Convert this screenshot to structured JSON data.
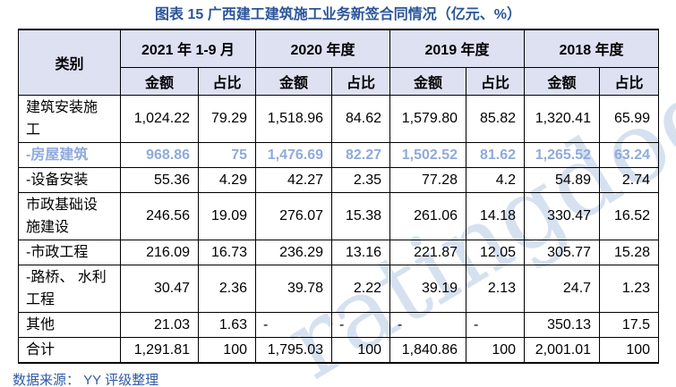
{
  "title": "图表 15 广西建工建筑施工业务新签合同情况（亿元、%）",
  "table": {
    "category_header": "类别",
    "period_headers": [
      "2021 年 1-9 月",
      "2020 年度",
      "2019 年度",
      "2018 年度"
    ],
    "sub_headers": {
      "amount": "金额",
      "share": "占比"
    },
    "rows": [
      {
        "label": "建筑安装施工",
        "highlight": false,
        "values": [
          "1,024.22",
          "79.29",
          "1,518.96",
          "84.62",
          "1,579.80",
          "85.82",
          "1,320.41",
          "65.99"
        ]
      },
      {
        "label": "-房屋建筑",
        "highlight": true,
        "values": [
          "968.86",
          "75",
          "1,476.69",
          "82.27",
          "1,502.52",
          "81.62",
          "1,265.52",
          "63.24"
        ]
      },
      {
        "label": "-设备安装",
        "highlight": false,
        "values": [
          "55.36",
          "4.29",
          "42.27",
          "2.35",
          "77.28",
          "4.2",
          "54.89",
          "2.74"
        ]
      },
      {
        "label": "市政基础设施建设",
        "highlight": false,
        "values": [
          "246.56",
          "19.09",
          "276.07",
          "15.38",
          "261.06",
          "14.18",
          "330.47",
          "16.52"
        ]
      },
      {
        "label": "-市政工程",
        "highlight": false,
        "values": [
          "216.09",
          "16.73",
          "236.29",
          "13.16",
          "221.87",
          "12.05",
          "305.77",
          "15.28"
        ]
      },
      {
        "label": "-路桥、 水利工程",
        "highlight": false,
        "values": [
          "30.47",
          "2.36",
          "39.78",
          "2.22",
          "39.19",
          "2.13",
          "24.7",
          "1.23"
        ]
      },
      {
        "label": "其他",
        "highlight": false,
        "values": [
          "21.03",
          "1.63",
          "-",
          "-",
          "-",
          "-",
          "350.13",
          "17.5"
        ]
      },
      {
        "label": "合计",
        "highlight": false,
        "values": [
          "1,291.81",
          "100",
          "1,795.03",
          "100",
          "1,840.86",
          "100",
          "2,001.01",
          "100"
        ]
      }
    ]
  },
  "footer": {
    "source": "数据来源： YY 评级整理"
  },
  "watermark": "ratingdog",
  "colors": {
    "title_blue": "#2b5599",
    "header_bg": "#dde1f1",
    "highlight_blue": "#8faadc",
    "source_blue": "#2e5aa8",
    "watermark_blue": "#c9d8eb",
    "border_black": "#000000"
  }
}
